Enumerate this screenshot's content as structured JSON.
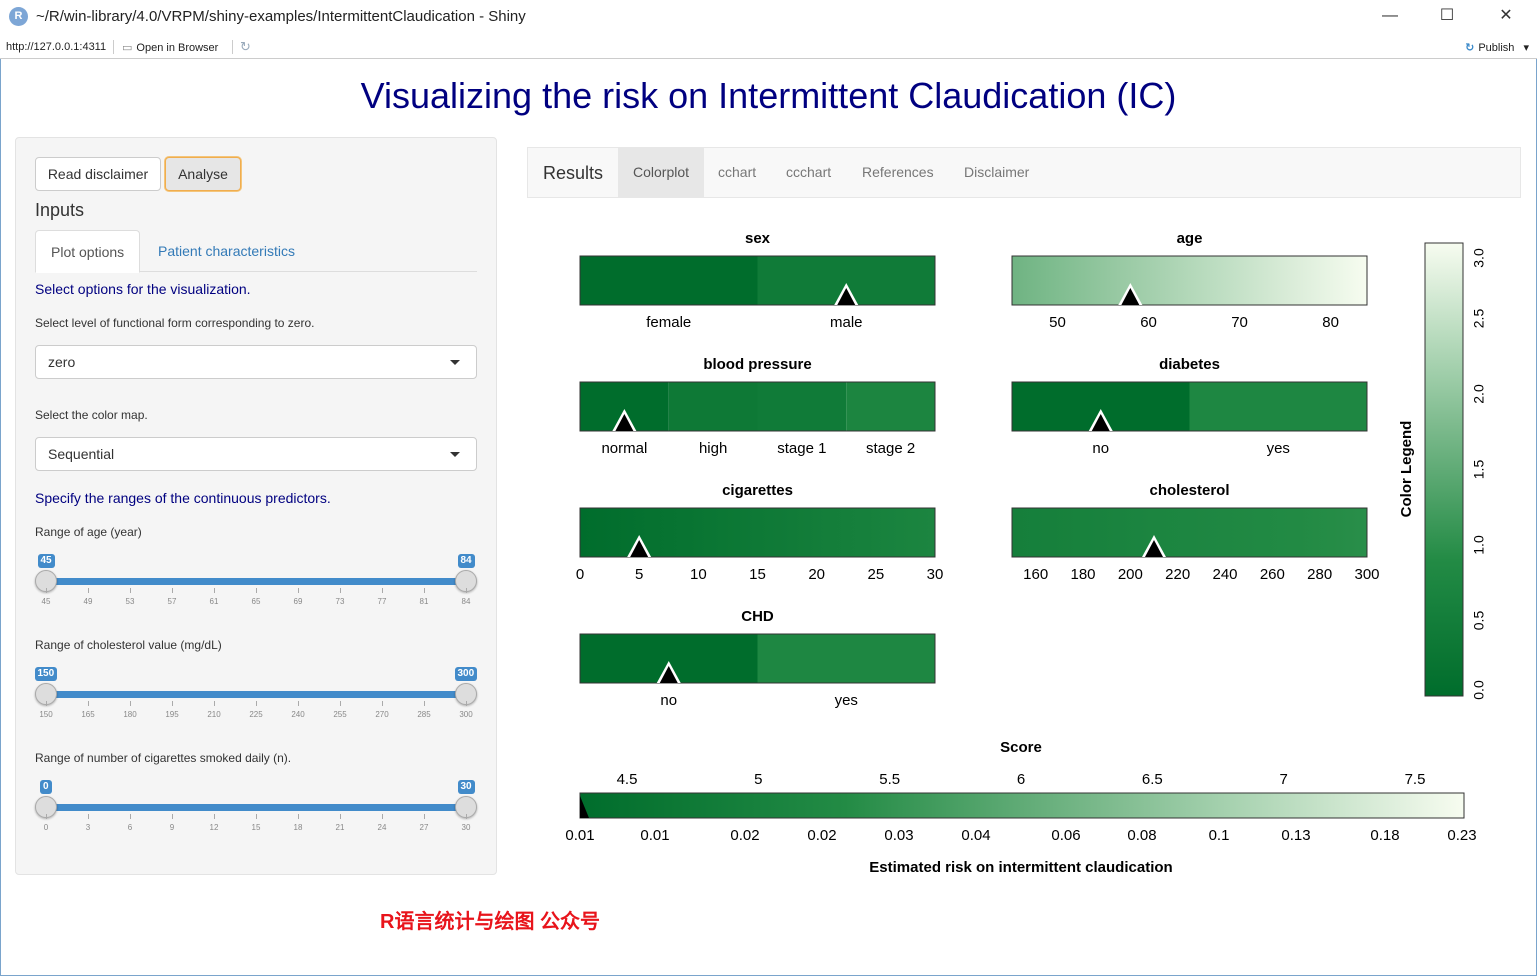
{
  "window": {
    "title": "~/R/win-library/4.0/VRPM/shiny-examples/IntermittentClaudication - Shiny",
    "app_icon": "R",
    "minimize": "—",
    "maximize": "☐",
    "close": "✕"
  },
  "toolbar": {
    "url": "http://127.0.0.1:4311",
    "open_in_browser": "Open in Browser",
    "publish": "Publish"
  },
  "page_title": "Visualizing the risk on Intermittent Claudication (IC)",
  "sidebar": {
    "read_disclaimer": "Read disclaimer",
    "analyse": "Analyse",
    "inputs_label": "Inputs",
    "tabs": [
      "Plot options",
      "Patient characteristics"
    ],
    "select_options_text": "Select options for the visualization.",
    "functional_form_label": "Select level of functional form corresponding to zero.",
    "functional_form_value": "zero",
    "color_map_label": "Select the color map.",
    "color_map_value": "Sequential",
    "ranges_text": "Specify the ranges of the continuous predictors.",
    "sliders": [
      {
        "label": "Range of age (year)",
        "min": 45,
        "max": 84,
        "from": 45,
        "to": 84,
        "ticks": [
          "45",
          "49",
          "53",
          "57",
          "61",
          "65",
          "69",
          "73",
          "77",
          "81",
          "84"
        ]
      },
      {
        "label": "Range of cholesterol value (mg/dL)",
        "min": 150,
        "max": 300,
        "from": 150,
        "to": 300,
        "ticks": [
          "150",
          "165",
          "180",
          "195",
          "210",
          "225",
          "240",
          "255",
          "270",
          "285",
          "300"
        ]
      },
      {
        "label": "Range of number of cigarettes smoked daily (n).",
        "min": 0,
        "max": 30,
        "from": 0,
        "to": 30,
        "ticks": [
          "0",
          "3",
          "6",
          "9",
          "12",
          "15",
          "18",
          "21",
          "24",
          "27",
          "30"
        ]
      }
    ]
  },
  "main_tabs": {
    "brand": "Results",
    "tabs": [
      "Colorplot",
      "cchart",
      "ccchart",
      "References",
      "Disclaimer"
    ],
    "active": "Colorplot"
  },
  "plot": {
    "colors": {
      "dark": "#006d2c",
      "light": "#f7fcf0",
      "mid": "#238b45"
    },
    "panels": [
      {
        "title": "sex",
        "type": "categorical",
        "levels": [
          "female",
          "male"
        ],
        "fills": [
          0.0,
          0.14
        ],
        "marker_level": 1
      },
      {
        "title": "age",
        "type": "continuous",
        "ticks": [
          "50",
          "60",
          "70",
          "80"
        ],
        "tick_values": [
          50,
          60,
          70,
          80
        ],
        "range": [
          45,
          84
        ],
        "grad": [
          0.55,
          1.0
        ],
        "marker_value": 58
      },
      {
        "title": "blood pressure",
        "type": "categorical",
        "levels": [
          "normal",
          "high",
          "stage 1",
          "stage 2"
        ],
        "fills": [
          0.0,
          0.12,
          0.14,
          0.24
        ],
        "marker_level": 0
      },
      {
        "title": "diabetes",
        "type": "categorical",
        "levels": [
          "no",
          "yes"
        ],
        "fills": [
          0.0,
          0.26
        ],
        "marker_level": 0
      },
      {
        "title": "cigarettes",
        "type": "continuous",
        "ticks": [
          "0",
          "5",
          "10",
          "15",
          "20",
          "25",
          "30"
        ],
        "tick_values": [
          0,
          5,
          10,
          15,
          20,
          25,
          30
        ],
        "range": [
          0,
          30
        ],
        "grad": [
          0.0,
          0.24
        ],
        "marker_value": 5
      },
      {
        "title": "cholesterol",
        "type": "continuous",
        "ticks": [
          "160",
          "180",
          "200",
          "220",
          "240",
          "260",
          "280",
          "300"
        ],
        "tick_values": [
          160,
          180,
          200,
          220,
          240,
          260,
          280,
          300
        ],
        "range": [
          150,
          300
        ],
        "grad": [
          0.18,
          0.32
        ],
        "marker_value": 210
      },
      {
        "title": "CHD",
        "type": "categorical",
        "levels": [
          "no",
          "yes"
        ],
        "fills": [
          0.0,
          0.26
        ],
        "marker_level": 0
      }
    ],
    "legend": {
      "title": "Color Legend",
      "ticks": [
        "0.0",
        "0.5",
        "1.0",
        "1.5",
        "2.0",
        "2.5",
        "3.0"
      ]
    },
    "score": {
      "title": "Score",
      "top_ticks": [
        "4.5",
        "5",
        "5.5",
        "6",
        "6.5",
        "7",
        "7.5"
      ],
      "bottom_ticks": [
        "0.01",
        "0.01",
        "0.02",
        "0.02",
        "0.03",
        "0.04",
        "0.06",
        "0.08",
        "0.1",
        "0.13",
        "0.18",
        "0.23"
      ],
      "xlabel": "Estimated risk on intermittent claudication",
      "marker_value": 4.28
    }
  },
  "watermark": "R语言统计与绘图 公众号"
}
